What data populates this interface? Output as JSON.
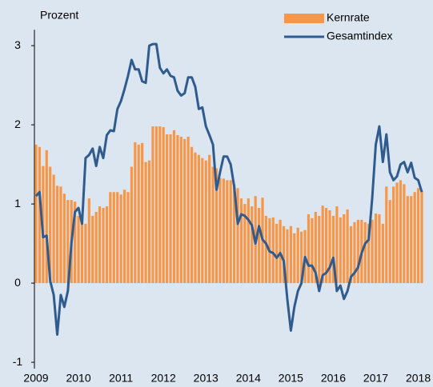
{
  "chart_data": {
    "type": "bar-line",
    "y_label": "Prozent",
    "categories": [
      "2009",
      null,
      null,
      null,
      null,
      null,
      null,
      null,
      null,
      null,
      null,
      null,
      "2010",
      null,
      null,
      null,
      null,
      null,
      null,
      null,
      null,
      null,
      null,
      null,
      "2011",
      null,
      null,
      null,
      null,
      null,
      null,
      null,
      null,
      null,
      null,
      null,
      "2012",
      null,
      null,
      null,
      null,
      null,
      null,
      null,
      null,
      null,
      null,
      null,
      "2013",
      null,
      null,
      null,
      null,
      null,
      null,
      null,
      null,
      null,
      null,
      null,
      "2014",
      null,
      null,
      null,
      null,
      null,
      null,
      null,
      null,
      null,
      null,
      null,
      "2015",
      null,
      null,
      null,
      null,
      null,
      null,
      null,
      null,
      null,
      null,
      null,
      "2016",
      null,
      null,
      null,
      null,
      null,
      null,
      null,
      null,
      null,
      null,
      null,
      "2017",
      null,
      null,
      null,
      null,
      null,
      null,
      null,
      null,
      null,
      null,
      null,
      "2018",
      null
    ],
    "series": [
      {
        "name": "Kernrate",
        "kind": "bar",
        "color": "#f79646",
        "values": [
          1.75,
          1.72,
          1.48,
          1.68,
          1.47,
          1.37,
          1.23,
          1.22,
          1.13,
          1.05,
          1.05,
          1.03,
          0.85,
          0.8,
          0.75,
          1.07,
          0.85,
          0.9,
          0.97,
          0.95,
          0.97,
          1.15,
          1.15,
          1.15,
          1.12,
          1.18,
          1.15,
          1.47,
          1.78,
          1.75,
          1.77,
          1.53,
          1.55,
          1.98,
          1.98,
          1.98,
          1.97,
          1.88,
          1.88,
          1.93,
          1.87,
          1.85,
          1.82,
          1.85,
          1.72,
          1.65,
          1.62,
          1.58,
          1.55,
          1.62,
          1.47,
          1.45,
          1.33,
          1.32,
          1.3,
          1.3,
          1.25,
          1.2,
          1.07,
          1.0,
          1.07,
          0.97,
          1.1,
          0.95,
          1.08,
          0.85,
          0.82,
          0.83,
          0.75,
          0.8,
          0.72,
          0.68,
          0.72,
          0.63,
          0.7,
          0.65,
          0.67,
          0.87,
          0.82,
          0.9,
          0.85,
          0.98,
          0.95,
          0.92,
          0.85,
          0.97,
          0.83,
          0.87,
          0.93,
          0.72,
          0.77,
          0.8,
          0.8,
          0.77,
          0.75,
          0.8,
          0.88,
          0.87,
          0.75,
          1.22,
          1.05,
          1.22,
          1.27,
          1.3,
          1.25,
          1.1,
          1.1,
          1.15,
          1.2,
          1.17
        ]
      },
      {
        "name": "Gesamtindex",
        "kind": "line",
        "color": "#2f5b8e",
        "values": [
          1.1,
          1.15,
          0.58,
          0.6,
          0.03,
          -0.15,
          -0.65,
          -0.15,
          -0.3,
          -0.1,
          0.5,
          0.9,
          0.95,
          0.75,
          1.58,
          1.62,
          1.7,
          1.48,
          1.72,
          1.58,
          1.87,
          1.93,
          1.92,
          2.2,
          2.3,
          2.45,
          2.62,
          2.82,
          2.7,
          2.7,
          2.55,
          2.53,
          3.0,
          3.02,
          3.02,
          2.72,
          2.65,
          2.7,
          2.62,
          2.6,
          2.43,
          2.37,
          2.4,
          2.6,
          2.6,
          2.48,
          2.2,
          2.22,
          1.98,
          1.87,
          1.75,
          1.18,
          1.4,
          1.6,
          1.6,
          1.5,
          1.22,
          0.75,
          0.87,
          0.85,
          0.8,
          0.73,
          0.5,
          0.72,
          0.55,
          0.5,
          0.4,
          0.38,
          0.32,
          0.38,
          0.28,
          -0.2,
          -0.6,
          -0.3,
          -0.1,
          0.0,
          0.33,
          0.22,
          0.22,
          0.13,
          -0.1,
          0.1,
          0.13,
          0.2,
          0.32,
          -0.1,
          -0.03,
          -0.2,
          -0.1,
          0.08,
          0.13,
          0.2,
          0.38,
          0.5,
          0.55,
          1.08,
          1.75,
          1.98,
          1.53,
          1.88,
          1.4,
          1.3,
          1.35,
          1.5,
          1.53,
          1.4,
          1.52,
          1.33,
          1.3,
          1.15
        ]
      }
    ],
    "ylim": [
      -1.08,
      3.2
    ],
    "yticks": [
      -1,
      0,
      1,
      2,
      3
    ],
    "grid": false
  }
}
